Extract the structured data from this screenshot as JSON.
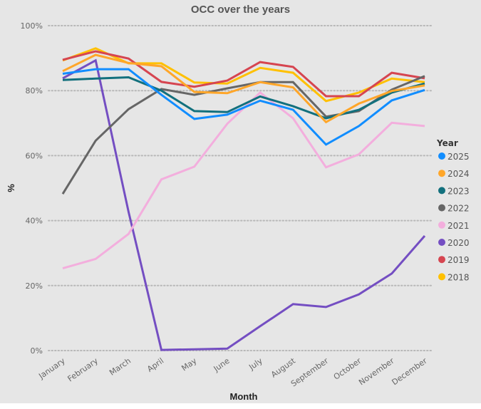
{
  "chart_data": {
    "type": "line",
    "title": "OCC over the years",
    "xlabel": "Month",
    "ylabel": "%",
    "ylim": [
      0,
      100
    ],
    "yticks": [
      "0%",
      "20%",
      "40%",
      "60%",
      "80%",
      "100%"
    ],
    "ytick_values": [
      0,
      20,
      40,
      60,
      80,
      100
    ],
    "grid": true,
    "legend_title": "Year",
    "legend_position": "right",
    "categories": [
      "January",
      "February",
      "March",
      "April",
      "May",
      "June",
      "July",
      "August",
      "September",
      "October",
      "November",
      "December"
    ],
    "series": [
      {
        "name": "2025",
        "color": "#118dff",
        "values": [
          85.2,
          86.6,
          86.6,
          78.7,
          71.3,
          72.6,
          76.9,
          74.1,
          63.4,
          69.1,
          77.0,
          80.2
        ]
      },
      {
        "name": "2024",
        "color": "#ffa629",
        "values": [
          86.0,
          91.0,
          88.5,
          87.5,
          79.6,
          79.2,
          82.6,
          81.0,
          70.3,
          76.0,
          79.9,
          81.6
        ]
      },
      {
        "name": "2023",
        "color": "#12707d",
        "values": [
          83.3,
          83.7,
          84.1,
          80.0,
          73.7,
          73.4,
          78.2,
          75.2,
          71.5,
          74.1,
          79.4,
          82.2
        ]
      },
      {
        "name": "2022",
        "color": "#666666",
        "values": [
          48.2,
          64.6,
          74.3,
          80.5,
          78.7,
          80.7,
          82.6,
          82.6,
          72.0,
          73.7,
          80.3,
          84.5
        ]
      },
      {
        "name": "2021",
        "color": "#f3aedd",
        "values": [
          25.3,
          28.2,
          35.9,
          52.7,
          56.6,
          69.8,
          79.4,
          71.5,
          56.4,
          60.4,
          70.1,
          69.1
        ]
      },
      {
        "name": "2020",
        "color": "#744ec2",
        "values": [
          83.8,
          89.3,
          42.7,
          0.2,
          0.4,
          0.6,
          7.5,
          14.3,
          13.4,
          17.3,
          23.7,
          35.3
        ]
      },
      {
        "name": "2019",
        "color": "#d64550",
        "values": [
          89.5,
          92.1,
          89.9,
          82.7,
          81.2,
          83.1,
          88.8,
          87.3,
          78.3,
          78.3,
          85.5,
          83.8
        ]
      },
      {
        "name": "2018",
        "color": "#ffc000",
        "values": [
          89.3,
          93.0,
          88.4,
          88.4,
          82.5,
          82.2,
          87.0,
          85.5,
          76.8,
          79.4,
          83.7,
          82.6
        ]
      }
    ]
  }
}
